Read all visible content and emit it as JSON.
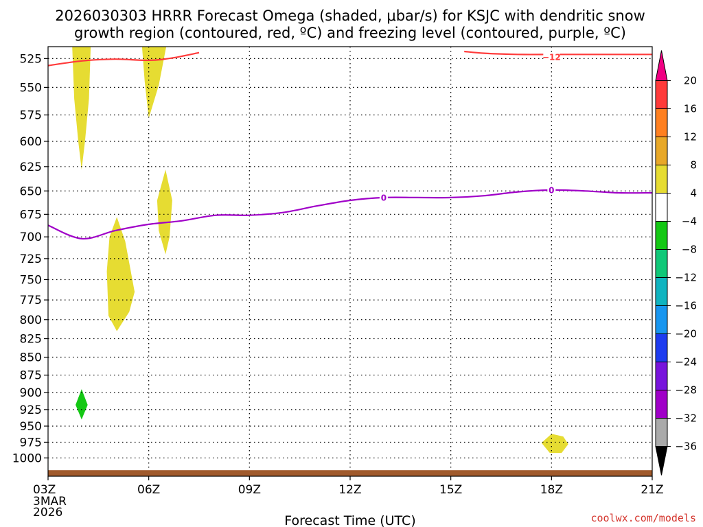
{
  "chart_data": {
    "type": "time-height cross section",
    "title_lines": [
      "2026030303 HRRR Forecast Omega (shaded, μbar/s) for KSJC with dendritic snow",
      "growth region (contoured, red, ºC) and freezing level (contoured, purple, ºC)"
    ],
    "xlabel": "Forecast Time (UTC)",
    "x_range": [
      0,
      18
    ],
    "x_ticks": [
      {
        "x": 0,
        "label": "03Z",
        "sub": [
          "3MAR",
          "2026"
        ]
      },
      {
        "x": 3,
        "label": "06Z"
      },
      {
        "x": 6,
        "label": "09Z"
      },
      {
        "x": 9,
        "label": "12Z"
      },
      {
        "x": 12,
        "label": "15Z"
      },
      {
        "x": 15,
        "label": "18Z"
      },
      {
        "x": 18,
        "label": "21Z"
      }
    ],
    "y_range": [
      515,
      1030
    ],
    "y_ticks": [
      525,
      550,
      575,
      600,
      625,
      650,
      675,
      700,
      725,
      750,
      775,
      800,
      825,
      850,
      875,
      900,
      925,
      950,
      975,
      1000
    ],
    "colorbar": {
      "labels": [
        "20",
        "16",
        "12",
        "8",
        "4",
        "−4",
        "−8",
        "−12",
        "−16",
        "−20",
        "−24",
        "−28",
        "−32",
        "−36"
      ],
      "colors": [
        "#ff3a3a",
        "#ff8020",
        "#e8a828",
        "#e6dc32",
        "#ffffff",
        "#14c814",
        "#10c878",
        "#10b4c0",
        "#1896f0",
        "#1e3cf0",
        "#7814dc",
        "#a000c8",
        "#aaaaaa"
      ],
      "top_triangle_color": "#f00082",
      "bottom_triangle_color": "#000000"
    },
    "freezing_level": {
      "label": "0",
      "color": "#a000c8",
      "points": [
        [
          0,
          687
        ],
        [
          1,
          702
        ],
        [
          2,
          693
        ],
        [
          3,
          686
        ],
        [
          4,
          682
        ],
        [
          5,
          676
        ],
        [
          6,
          676
        ],
        [
          7,
          673
        ],
        [
          8,
          666
        ],
        [
          9,
          660
        ],
        [
          10,
          657
        ],
        [
          11,
          657
        ],
        [
          12,
          657
        ],
        [
          13,
          655
        ],
        [
          14,
          651
        ],
        [
          15,
          649
        ],
        [
          16,
          650
        ],
        [
          17,
          652
        ],
        [
          18,
          652
        ]
      ],
      "label_at": [
        [
          10,
          657
        ],
        [
          15,
          649
        ]
      ]
    },
    "dgz_contour": {
      "label": "−12",
      "color": "#ff3a3a",
      "segments": [
        [
          [
            0,
            531
          ],
          [
            1,
            527
          ],
          [
            2,
            525.5
          ],
          [
            3,
            526.5
          ],
          [
            3.7,
            524.5
          ],
          [
            4.5,
            520
          ]
        ],
        [
          [
            12.4,
            519
          ],
          [
            13,
            520.5
          ],
          [
            14,
            521.5
          ],
          [
            15,
            521.5
          ],
          [
            16,
            521.5
          ],
          [
            17,
            521.5
          ],
          [
            18,
            521.5
          ]
        ]
      ],
      "label_at": [
        15,
        521
      ]
    },
    "omega_regions": [
      {
        "name": "yellow-4-8",
        "color": "#e6dc32",
        "points": [
          [
            0.72,
            515
          ],
          [
            0.78,
            560
          ],
          [
            0.9,
            600
          ],
          [
            1.0,
            628
          ],
          [
            1.1,
            600
          ],
          [
            1.22,
            560
          ],
          [
            1.27,
            515
          ]
        ]
      },
      {
        "name": "yellow-4-8",
        "color": "#e6dc32",
        "points": [
          [
            2.8,
            515
          ],
          [
            2.88,
            545
          ],
          [
            3.0,
            578
          ],
          [
            3.3,
            548
          ],
          [
            3.52,
            515
          ]
        ]
      },
      {
        "name": "yellow-4-8",
        "color": "#e6dc32",
        "points": [
          [
            3.25,
            660
          ],
          [
            3.5,
            628
          ],
          [
            3.7,
            660
          ],
          [
            3.62,
            700
          ],
          [
            3.5,
            720
          ],
          [
            3.3,
            693
          ]
        ]
      },
      {
        "name": "yellow-4-8",
        "color": "#e6dc32",
        "points": [
          [
            1.75,
            740
          ],
          [
            1.83,
            700
          ],
          [
            2.05,
            678
          ],
          [
            2.3,
            705
          ],
          [
            2.58,
            765
          ],
          [
            2.42,
            790
          ],
          [
            2.05,
            815
          ],
          [
            1.8,
            795
          ]
        ]
      },
      {
        "name": "green-neg4-neg8",
        "color": "#14c814",
        "points": [
          [
            0.82,
            918
          ],
          [
            1.0,
            895
          ],
          [
            1.18,
            918
          ],
          [
            1.0,
            940
          ]
        ]
      },
      {
        "name": "yellow-4-8",
        "color": "#e6dc32",
        "points": [
          [
            14.7,
            976
          ],
          [
            15.0,
            962
          ],
          [
            15.35,
            966
          ],
          [
            15.5,
            978
          ],
          [
            15.3,
            992
          ],
          [
            14.95,
            992
          ]
        ]
      }
    ],
    "terrain": {
      "color": "#a05a2c",
      "pressure_top": 1020
    }
  },
  "credit": "coolwx.com/models"
}
